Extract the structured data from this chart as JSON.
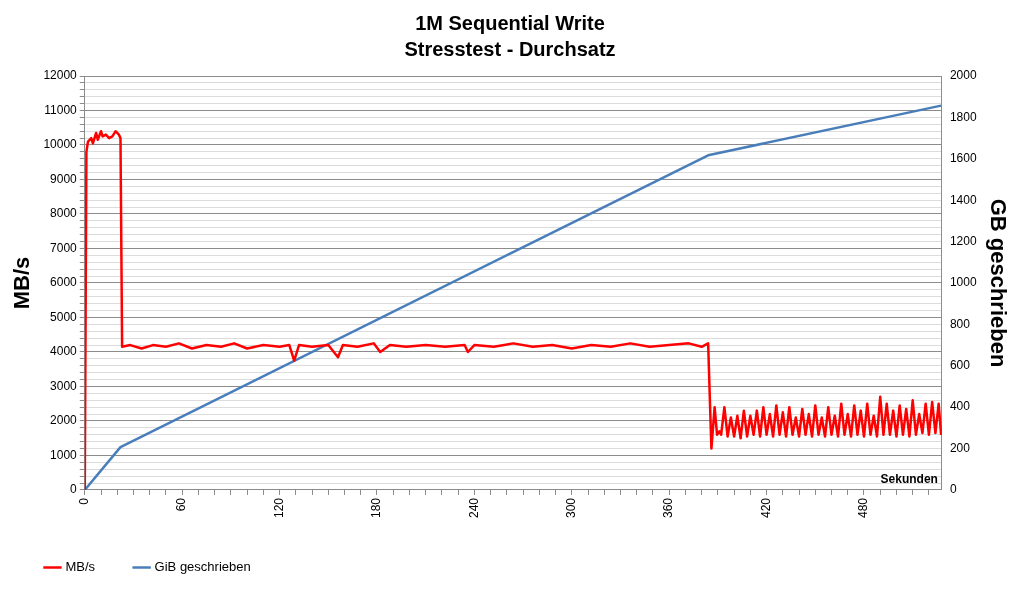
{
  "chart_data": {
    "type": "line",
    "title": "1M Sequential Write",
    "subtitle": "Stresstest - Durchsatz",
    "xlabel": "Sekunden",
    "ylabel": "MB/s",
    "y2label": "GB geschrieben",
    "xlim": [
      0,
      528
    ],
    "xticks": [
      0,
      {
        "value": 10,
        "label": null
      },
      {
        "value": 20,
        "label": null
      },
      {
        "value": 30,
        "label": null
      },
      {
        "value": 40,
        "label": null
      },
      {
        "value": 50,
        "label": null
      },
      60,
      {
        "value": 70,
        "label": null
      },
      {
        "value": 80,
        "label": null
      },
      {
        "value": 90,
        "label": null
      },
      {
        "value": 100,
        "label": null
      },
      {
        "value": 110,
        "label": null
      },
      120,
      {
        "value": 130,
        "label": null
      },
      {
        "value": 140,
        "label": null
      },
      {
        "value": 150,
        "label": null
      },
      {
        "value": 160,
        "label": null
      },
      {
        "value": 170,
        "label": null
      },
      180,
      {
        "value": 190,
        "label": null
      },
      {
        "value": 200,
        "label": null
      },
      {
        "value": 210,
        "label": null
      },
      {
        "value": 220,
        "label": null
      },
      {
        "value": 230,
        "label": null
      },
      240,
      {
        "value": 250,
        "label": null
      },
      {
        "value": 260,
        "label": null
      },
      {
        "value": 270,
        "label": null
      },
      {
        "value": 280,
        "label": null
      },
      {
        "value": 290,
        "label": null
      },
      300,
      {
        "value": 310,
        "label": null
      },
      {
        "value": 320,
        "label": null
      },
      {
        "value": 330,
        "label": null
      },
      {
        "value": 340,
        "label": null
      },
      {
        "value": 350,
        "label": null
      },
      360,
      {
        "value": 370,
        "label": null
      },
      {
        "value": 380,
        "label": null
      },
      {
        "value": 390,
        "label": null
      },
      {
        "value": 400,
        "label": null
      },
      {
        "value": 410,
        "label": null
      },
      420,
      {
        "value": 430,
        "label": null
      },
      {
        "value": 440,
        "label": null
      },
      {
        "value": 450,
        "label": null
      },
      {
        "value": 460,
        "label": null
      },
      {
        "value": 470,
        "label": null
      },
      480,
      {
        "value": 490,
        "label": null
      },
      {
        "value": 500,
        "label": null
      },
      {
        "value": 510,
        "label": null
      },
      {
        "value": 520,
        "label": null
      }
    ],
    "ylim": [
      0,
      12000
    ],
    "yticks": [
      0,
      {
        "value": 200,
        "label": null
      },
      {
        "value": 400,
        "label": null
      },
      {
        "value": 600,
        "label": null
      },
      {
        "value": 800,
        "label": null
      },
      1000,
      {
        "value": 1200,
        "label": null
      },
      {
        "value": 1400,
        "label": null
      },
      {
        "value": 1600,
        "label": null
      },
      {
        "value": 1800,
        "label": null
      },
      2000,
      {
        "value": 2200,
        "label": null
      },
      {
        "value": 2400,
        "label": null
      },
      {
        "value": 2600,
        "label": null
      },
      {
        "value": 2800,
        "label": null
      },
      3000,
      {
        "value": 3200,
        "label": null
      },
      {
        "value": 3400,
        "label": null
      },
      {
        "value": 3600,
        "label": null
      },
      {
        "value": 3800,
        "label": null
      },
      4000,
      {
        "value": 4200,
        "label": null
      },
      {
        "value": 4400,
        "label": null
      },
      {
        "value": 4600,
        "label": null
      },
      {
        "value": 4800,
        "label": null
      },
      5000,
      {
        "value": 5200,
        "label": null
      },
      {
        "value": 5400,
        "label": null
      },
      {
        "value": 5600,
        "label": null
      },
      {
        "value": 5800,
        "label": null
      },
      6000,
      {
        "value": 6200,
        "label": null
      },
      {
        "value": 6400,
        "label": null
      },
      {
        "value": 6600,
        "label": null
      },
      {
        "value": 6800,
        "label": null
      },
      7000,
      {
        "value": 7200,
        "label": null
      },
      {
        "value": 7400,
        "label": null
      },
      {
        "value": 7600,
        "label": null
      },
      {
        "value": 7800,
        "label": null
      },
      8000,
      {
        "value": 8200,
        "label": null
      },
      {
        "value": 8400,
        "label": null
      },
      {
        "value": 8600,
        "label": null
      },
      {
        "value": 8800,
        "label": null
      },
      9000,
      {
        "value": 9200,
        "label": null
      },
      {
        "value": 9400,
        "label": null
      },
      {
        "value": 9600,
        "label": null
      },
      {
        "value": 9800,
        "label": null
      },
      10000,
      {
        "value": 10200,
        "label": null
      },
      {
        "value": 10400,
        "label": null
      },
      {
        "value": 10600,
        "label": null
      },
      {
        "value": 10800,
        "label": null
      },
      11000,
      {
        "value": 11200,
        "label": null
      },
      {
        "value": 11400,
        "label": null
      },
      {
        "value": 11600,
        "label": null
      },
      {
        "value": 11800,
        "label": null
      },
      12000
    ],
    "y2lim": [
      0,
      2000
    ],
    "y2ticks": [
      0,
      200,
      400,
      600,
      800,
      1000,
      1200,
      1400,
      1600,
      1800,
      2000
    ],
    "grid": "y",
    "legend": "bottom",
    "marker": "none",
    "line_style": "solid",
    "series": [
      {
        "name": "MB/s",
        "color": "#ff0000",
        "x": [
          0,
          1,
          2,
          4,
          5,
          7,
          8,
          10,
          11,
          13,
          15,
          17,
          19,
          21,
          22,
          23,
          28,
          35,
          42,
          50,
          58,
          66,
          75,
          84,
          92,
          100,
          110,
          120,
          126,
          129,
          132,
          140,
          150,
          156,
          159,
          168,
          178,
          182,
          188,
          198,
          210,
          222,
          234,
          236,
          240,
          252,
          264,
          276,
          288,
          300,
          312,
          324,
          336,
          348,
          360,
          372,
          380,
          384,
          386,
          388,
          389.5,
          391,
          392,
          394,
          396,
          398,
          400,
          402,
          404,
          406,
          408,
          410,
          412,
          414,
          416,
          418,
          420,
          422,
          424,
          426,
          428,
          430,
          432,
          434,
          436,
          438,
          440,
          442,
          444,
          446,
          448,
          450,
          452,
          454,
          456,
          458,
          460,
          462,
          464,
          466,
          468,
          470,
          472,
          474,
          476,
          478,
          480,
          482,
          484,
          486,
          488,
          490,
          492,
          494,
          496,
          498,
          500,
          502,
          504,
          506,
          508,
          510,
          512,
          514,
          516,
          518,
          520,
          522,
          524,
          526,
          527.5
        ],
        "values": [
          0,
          9800,
          10100,
          10200,
          10050,
          10350,
          10150,
          10400,
          10250,
          10300,
          10200,
          10250,
          10400,
          10300,
          10200,
          4150,
          4200,
          4100,
          4200,
          4150,
          4250,
          4100,
          4200,
          4150,
          4250,
          4100,
          4200,
          4150,
          4200,
          3750,
          4200,
          4150,
          4200,
          3850,
          4200,
          4150,
          4250,
          4000,
          4200,
          4150,
          4200,
          4150,
          4200,
          4000,
          4200,
          4150,
          4250,
          4150,
          4200,
          4100,
          4200,
          4150,
          4250,
          4150,
          4200,
          4250,
          4150,
          4250,
          1200,
          2400,
          1600,
          1700,
          1600,
          2400,
          1550,
          2100,
          1550,
          2150,
          1500,
          2300,
          1550,
          2150,
          1600,
          2300,
          1550,
          2400,
          1600,
          2200,
          1550,
          2450,
          1600,
          2250,
          1550,
          2400,
          1600,
          2100,
          1550,
          2350,
          1600,
          2200,
          1550,
          2450,
          1600,
          2100,
          1550,
          2400,
          1600,
          2150,
          1550,
          2500,
          1600,
          2200,
          1550,
          2450,
          1600,
          2300,
          1550,
          2500,
          1600,
          2150,
          1550,
          2700,
          1600,
          2500,
          1600,
          2300,
          1550,
          2450,
          1600,
          2350,
          1550,
          2600,
          1600,
          2200,
          1650,
          2500,
          1600,
          2550,
          1650,
          2500,
          1600
        ]
      },
      {
        "name": "GiB geschrieben",
        "color": "#4a7ebb",
        "axis": "y2",
        "x": [
          0,
          22,
          384,
          527.5
        ],
        "values": [
          0,
          207,
          1617,
          1857
        ]
      }
    ]
  }
}
